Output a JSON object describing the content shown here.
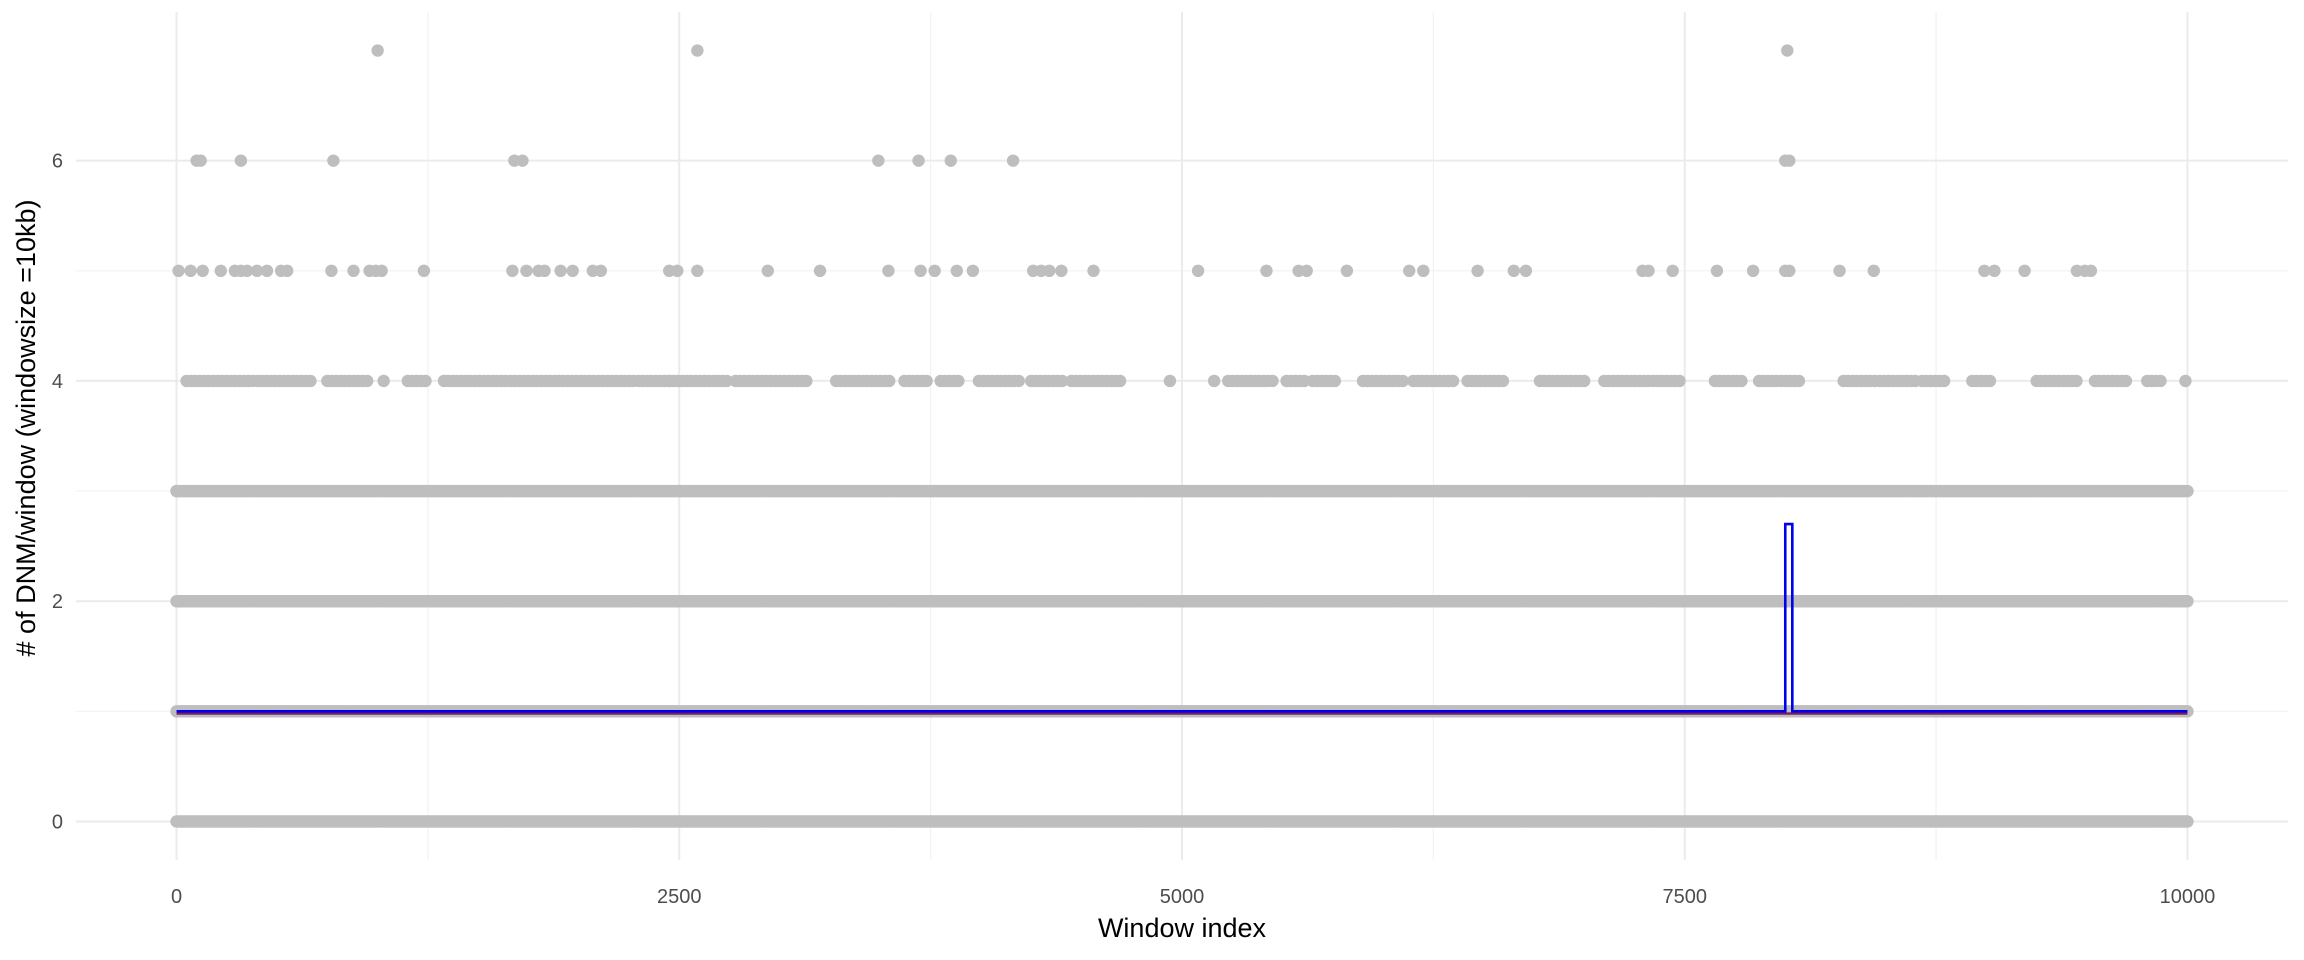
{
  "chart_data": {
    "type": "scatter",
    "title": "",
    "xlabel": "Window index",
    "ylabel": "# of DNM/window (windowsize =10kb)",
    "xlim": [
      -500,
      10500
    ],
    "ylim": [
      -0.35,
      7.35
    ],
    "x_ticks": [
      0,
      2500,
      5000,
      7500,
      10000
    ],
    "x_tick_labels": [
      "0",
      "2500",
      "5000",
      "7500",
      "10000"
    ],
    "y_ticks": [
      0,
      2,
      4,
      6
    ],
    "y_tick_labels": [
      "0",
      "2",
      "4",
      "6"
    ],
    "grid": true,
    "point_color": "#bebebe",
    "series": [
      {
        "kind": "points",
        "level_bands": [
          {
            "y": 0,
            "x_range": [
              0,
              10000
            ],
            "dense": true
          },
          {
            "y": 1,
            "x_range": [
              0,
              10000
            ],
            "dense": true
          },
          {
            "y": 2,
            "x_range": [
              0,
              10000
            ],
            "dense": true
          },
          {
            "y": 3,
            "x_range": [
              0,
              10000
            ],
            "dense": true
          }
        ],
        "points": [
          {
            "x": 0,
            "y": 3
          },
          {
            "x": 1000,
            "y": 7
          },
          {
            "x": 2590,
            "y": 7
          },
          {
            "x": 8010,
            "y": 7
          },
          {
            "x": 100,
            "y": 6
          },
          {
            "x": 120,
            "y": 6
          },
          {
            "x": 320,
            "y": 6
          },
          {
            "x": 780,
            "y": 6
          },
          {
            "x": 1680,
            "y": 6
          },
          {
            "x": 1720,
            "y": 6
          },
          {
            "x": 3490,
            "y": 6
          },
          {
            "x": 3690,
            "y": 6
          },
          {
            "x": 3850,
            "y": 6
          },
          {
            "x": 4160,
            "y": 6
          },
          {
            "x": 8000,
            "y": 6
          },
          {
            "x": 8020,
            "y": 6
          },
          {
            "x": 10,
            "y": 5
          },
          {
            "x": 70,
            "y": 5
          },
          {
            "x": 130,
            "y": 5
          },
          {
            "x": 220,
            "y": 5
          },
          {
            "x": 290,
            "y": 5
          },
          {
            "x": 320,
            "y": 5
          },
          {
            "x": 350,
            "y": 5
          },
          {
            "x": 400,
            "y": 5
          },
          {
            "x": 450,
            "y": 5
          },
          {
            "x": 520,
            "y": 5
          },
          {
            "x": 550,
            "y": 5
          },
          {
            "x": 770,
            "y": 5
          },
          {
            "x": 880,
            "y": 5
          },
          {
            "x": 960,
            "y": 5
          },
          {
            "x": 990,
            "y": 5
          },
          {
            "x": 1020,
            "y": 5
          },
          {
            "x": 1230,
            "y": 5
          },
          {
            "x": 1670,
            "y": 5
          },
          {
            "x": 1740,
            "y": 5
          },
          {
            "x": 1800,
            "y": 5
          },
          {
            "x": 1830,
            "y": 5
          },
          {
            "x": 1910,
            "y": 5
          },
          {
            "x": 1970,
            "y": 5
          },
          {
            "x": 2070,
            "y": 5
          },
          {
            "x": 2110,
            "y": 5
          },
          {
            "x": 2450,
            "y": 5
          },
          {
            "x": 2490,
            "y": 5
          },
          {
            "x": 2590,
            "y": 5
          },
          {
            "x": 2940,
            "y": 5
          },
          {
            "x": 3200,
            "y": 5
          },
          {
            "x": 3540,
            "y": 5
          },
          {
            "x": 3700,
            "y": 5
          },
          {
            "x": 3770,
            "y": 5
          },
          {
            "x": 3880,
            "y": 5
          },
          {
            "x": 3960,
            "y": 5
          },
          {
            "x": 4260,
            "y": 5
          },
          {
            "x": 4300,
            "y": 5
          },
          {
            "x": 4340,
            "y": 5
          },
          {
            "x": 4400,
            "y": 5
          },
          {
            "x": 4560,
            "y": 5
          },
          {
            "x": 5080,
            "y": 5
          },
          {
            "x": 5420,
            "y": 5
          },
          {
            "x": 5580,
            "y": 5
          },
          {
            "x": 5620,
            "y": 5
          },
          {
            "x": 5820,
            "y": 5
          },
          {
            "x": 6130,
            "y": 5
          },
          {
            "x": 6200,
            "y": 5
          },
          {
            "x": 6470,
            "y": 5
          },
          {
            "x": 6650,
            "y": 5
          },
          {
            "x": 6710,
            "y": 5
          },
          {
            "x": 7290,
            "y": 5
          },
          {
            "x": 7320,
            "y": 5
          },
          {
            "x": 7440,
            "y": 5
          },
          {
            "x": 7660,
            "y": 5
          },
          {
            "x": 7840,
            "y": 5
          },
          {
            "x": 8000,
            "y": 5
          },
          {
            "x": 8020,
            "y": 5
          },
          {
            "x": 8270,
            "y": 5
          },
          {
            "x": 8440,
            "y": 5
          },
          {
            "x": 8990,
            "y": 5
          },
          {
            "x": 9040,
            "y": 5
          },
          {
            "x": 9190,
            "y": 5
          },
          {
            "x": 9450,
            "y": 5
          },
          {
            "x": 9490,
            "y": 5
          },
          {
            "x": 9520,
            "y": 5
          },
          {
            "x": 9990,
            "y": 4
          },
          {
            "x": 4940,
            "y": 4
          },
          {
            "x": 5160,
            "y": 4
          },
          {
            "x": 1030,
            "y": 4
          }
        ],
        "level4_dense_ranges": [
          [
            50,
            680
          ],
          [
            750,
            960
          ],
          [
            1150,
            1250
          ],
          [
            1330,
            1900
          ],
          [
            1900,
            2450
          ],
          [
            2450,
            2750
          ],
          [
            2780,
            3150
          ],
          [
            3280,
            3560
          ],
          [
            3620,
            3750
          ],
          [
            3800,
            3900
          ],
          [
            3990,
            4200
          ],
          [
            4250,
            4420
          ],
          [
            4450,
            4700
          ],
          [
            5230,
            5470
          ],
          [
            5520,
            5620
          ],
          [
            5650,
            5760
          ],
          [
            5900,
            6100
          ],
          [
            6150,
            6360
          ],
          [
            6420,
            6600
          ],
          [
            6780,
            7000
          ],
          [
            7100,
            7480
          ],
          [
            7650,
            7800
          ],
          [
            7870,
            8070
          ],
          [
            8290,
            8450
          ],
          [
            8470,
            8650
          ],
          [
            8680,
            8800
          ],
          [
            8930,
            9030
          ],
          [
            9250,
            9450
          ],
          [
            9540,
            9700
          ],
          [
            9800,
            9880
          ]
        ],
        "level4_dense_step": 22
      },
      {
        "kind": "line",
        "color": "#7a1f5c",
        "x": [
          0,
          10000
        ],
        "y": [
          0.98,
          0.98
        ]
      },
      {
        "kind": "step",
        "color": "#0000ee",
        "x": [
          0,
          8000,
          8000,
          8035,
          8035,
          10000
        ],
        "y": [
          1.0,
          1.0,
          2.7,
          2.7,
          1.0,
          1.0
        ]
      }
    ]
  }
}
